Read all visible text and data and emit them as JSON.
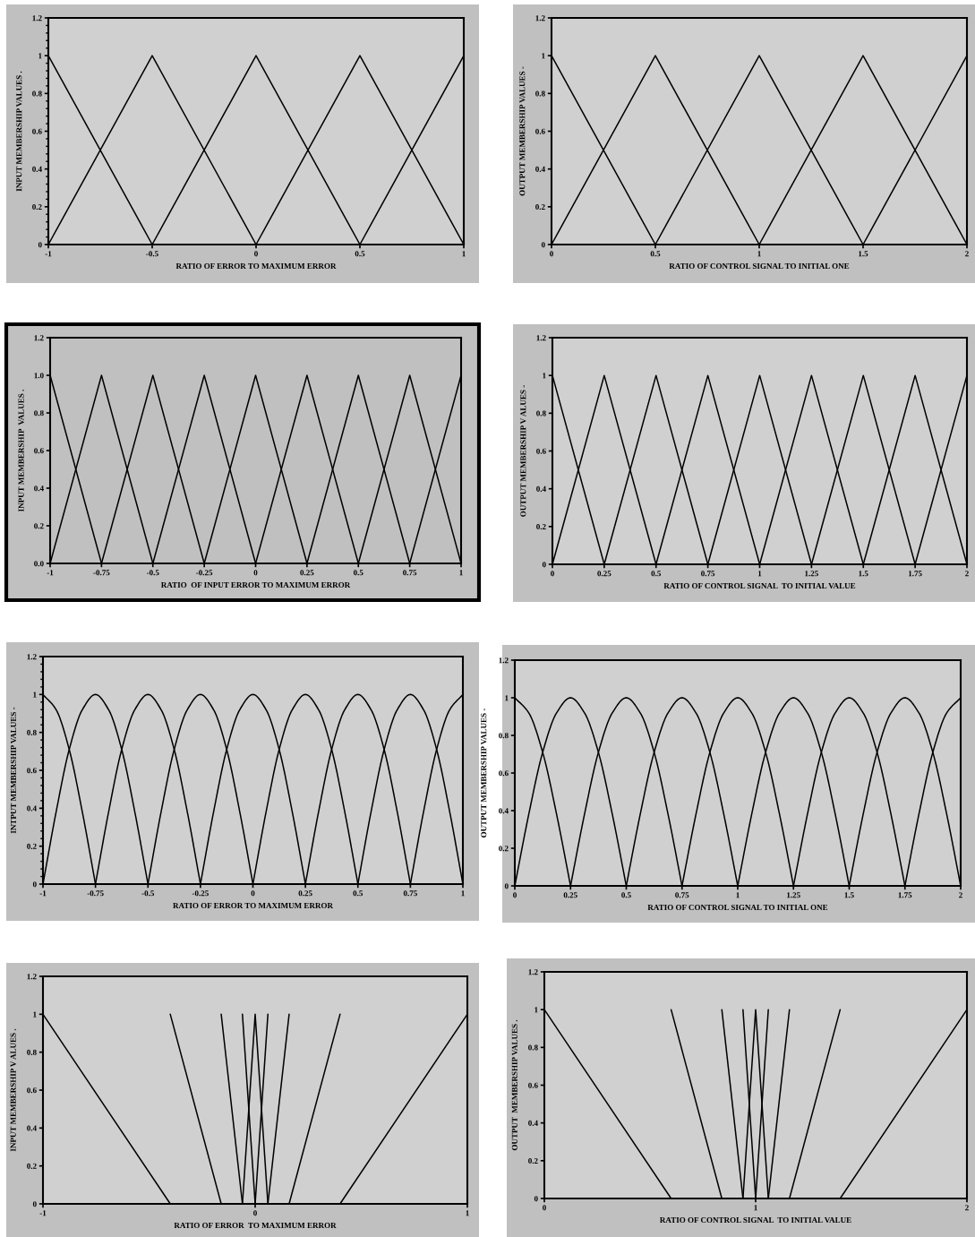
{
  "chart_data": [
    {
      "type": "line",
      "xlabel": "RATIO OF ERROR TO MAXIMUM ERROR",
      "ylabel": "INPUT MEMBERSHIP VALUES .",
      "xlim": [
        -1,
        1
      ],
      "ylim": [
        0,
        1.2
      ],
      "xticks": [
        -1,
        -0.5,
        0,
        0.5,
        1
      ],
      "yticks": [
        0,
        0.2,
        0.4,
        0.6,
        0.8,
        1,
        1.2
      ],
      "line_style": "solid",
      "series": [
        {
          "color": "#000000",
          "x": [
            -1,
            -0.5
          ],
          "values": [
            1,
            0
          ]
        },
        {
          "color": "#000000",
          "x": [
            -1,
            -0.5,
            0
          ],
          "values": [
            0,
            1,
            0
          ]
        },
        {
          "color": "#000000",
          "x": [
            -0.5,
            0,
            0.5
          ],
          "values": [
            0,
            1,
            0
          ]
        },
        {
          "color": "#000000",
          "x": [
            0,
            0.5,
            1
          ],
          "values": [
            0,
            1,
            0
          ]
        },
        {
          "color": "#000000",
          "x": [
            0.5,
            1
          ],
          "values": [
            0,
            1
          ]
        }
      ]
    },
    {
      "type": "line",
      "xlabel": "RATIO OF CONTROL SIGNAL TO INITIAL ONE",
      "ylabel": "OUTPUT MEMBERSHIP VALUES -",
      "xlim": [
        0,
        2
      ],
      "ylim": [
        0,
        1.2
      ],
      "xticks": [
        0,
        0.5,
        1,
        1.5,
        2
      ],
      "yticks": [
        0,
        0.2,
        0.4,
        0.6,
        0.8,
        1,
        1.2
      ],
      "line_style": "solid",
      "series": [
        {
          "color": "#000000",
          "x": [
            0,
            0.5
          ],
          "values": [
            1,
            0
          ]
        },
        {
          "color": "#000000",
          "x": [
            0,
            0.5,
            1
          ],
          "values": [
            0,
            1,
            0
          ]
        },
        {
          "color": "#000000",
          "x": [
            0.5,
            1,
            1.5
          ],
          "values": [
            0,
            1,
            0
          ]
        },
        {
          "color": "#000000",
          "x": [
            1,
            1.5,
            2
          ],
          "values": [
            0,
            1,
            0
          ]
        },
        {
          "color": "#000000",
          "x": [
            1.5,
            2
          ],
          "values": [
            0,
            1
          ]
        }
      ]
    },
    {
      "type": "line",
      "xlabel": "RATIO  OF INPUT ERROR TO MAXIMUM ERROR",
      "ylabel": "INPUT MEMBERSHIP  VALUES .",
      "xlim": [
        -1,
        1
      ],
      "ylim": [
        0,
        1.2
      ],
      "xticks": [
        -1,
        -0.75,
        -0.5,
        -0.25,
        0,
        0.25,
        0.5,
        0.75,
        1
      ],
      "yticks": [
        {
          "value": 0,
          "label": "0.0"
        },
        0.2,
        0.4,
        0.6,
        0.8,
        {
          "value": 1,
          "label": "1.0"
        },
        1.2
      ],
      "line_style": "solid",
      "series": [
        {
          "color": "#000000",
          "x": [
            -1,
            -0.75
          ],
          "values": [
            1,
            0
          ]
        },
        {
          "color": "#000000",
          "x": [
            -1,
            -0.75,
            -0.5
          ],
          "values": [
            0,
            1,
            0
          ]
        },
        {
          "color": "#000000",
          "x": [
            -0.75,
            -0.5,
            -0.25
          ],
          "values": [
            0,
            1,
            0
          ]
        },
        {
          "color": "#000000",
          "x": [
            -0.5,
            -0.25,
            0
          ],
          "values": [
            0,
            1,
            0
          ]
        },
        {
          "color": "#000000",
          "x": [
            -0.25,
            0,
            0.25
          ],
          "values": [
            0,
            1,
            0
          ]
        },
        {
          "color": "#000000",
          "x": [
            0,
            0.25,
            0.5
          ],
          "values": [
            0,
            1,
            0
          ]
        },
        {
          "color": "#000000",
          "x": [
            0.25,
            0.5,
            0.75
          ],
          "values": [
            0,
            1,
            0
          ]
        },
        {
          "color": "#000000",
          "x": [
            0.5,
            0.75,
            1
          ],
          "values": [
            0,
            1,
            0
          ]
        },
        {
          "color": "#000000",
          "x": [
            0.75,
            1
          ],
          "values": [
            0,
            1
          ]
        }
      ]
    },
    {
      "type": "line",
      "xlabel": "RATIO OF CONTROL SIGNAL  TO INITIAL VALUE",
      "ylabel": "OUTPUT MEMBERSHIP V ALUES -",
      "xlim": [
        0,
        2
      ],
      "ylim": [
        0,
        1.2
      ],
      "xticks": [
        0,
        0.25,
        0.5,
        0.75,
        1,
        1.25,
        1.5,
        1.75,
        2
      ],
      "yticks": [
        0,
        0.2,
        0.4,
        0.6,
        0.8,
        1,
        1.2
      ],
      "line_style": "solid",
      "series": [
        {
          "color": "#000000",
          "x": [
            0,
            0.25
          ],
          "values": [
            1,
            0
          ]
        },
        {
          "color": "#000000",
          "x": [
            0,
            0.25,
            0.5
          ],
          "values": [
            0,
            1,
            0
          ]
        },
        {
          "color": "#000000",
          "x": [
            0.25,
            0.5,
            0.75
          ],
          "values": [
            0,
            1,
            0
          ]
        },
        {
          "color": "#000000",
          "x": [
            0.5,
            0.75,
            1
          ],
          "values": [
            0,
            1,
            0
          ]
        },
        {
          "color": "#000000",
          "x": [
            0.75,
            1,
            1.25
          ],
          "values": [
            0,
            1,
            0
          ]
        },
        {
          "color": "#000000",
          "x": [
            1,
            1.25,
            1.5
          ],
          "values": [
            0,
            1,
            0
          ]
        },
        {
          "color": "#000000",
          "x": [
            1.25,
            1.5,
            1.75
          ],
          "values": [
            0,
            1,
            0
          ]
        },
        {
          "color": "#000000",
          "x": [
            1.5,
            1.75,
            2
          ],
          "values": [
            0,
            1,
            0
          ]
        },
        {
          "color": "#000000",
          "x": [
            1.75,
            2
          ],
          "values": [
            0,
            1
          ]
        }
      ]
    },
    {
      "type": "line",
      "xlabel": "RATIO OF ERROR TO MAXIMUM ERROR",
      "ylabel": "INTPUT MEMBERSHIP VALUES -",
      "xlim": [
        -1,
        1
      ],
      "ylim": [
        0,
        1.2
      ],
      "xticks": [
        -1,
        -0.75,
        -0.5,
        -0.25,
        0,
        0.25,
        0.5,
        0.75,
        1
      ],
      "yticks": [
        0,
        0.2,
        0.4,
        0.6,
        0.8,
        1,
        1.2
      ],
      "line_style": "solid",
      "series": [
        {
          "color": "#000000",
          "x": [
            -1,
            -0.9375,
            -0.875,
            -0.8125,
            -0.75
          ],
          "values": [
            1,
            0.92,
            0.71,
            0.38,
            0
          ]
        },
        {
          "color": "#000000",
          "x": [
            -1,
            -0.9375,
            -0.875,
            -0.8125,
            -0.75,
            -0.6875,
            -0.625,
            -0.5625,
            -0.5
          ],
          "values": [
            0,
            0.38,
            0.71,
            0.92,
            1,
            0.92,
            0.71,
            0.38,
            0
          ]
        },
        {
          "color": "#000000",
          "x": [
            -0.75,
            -0.6875,
            -0.625,
            -0.5625,
            -0.5,
            -0.4375,
            -0.375,
            -0.3125,
            -0.25
          ],
          "values": [
            0,
            0.38,
            0.71,
            0.92,
            1,
            0.92,
            0.71,
            0.38,
            0
          ]
        },
        {
          "color": "#000000",
          "x": [
            -0.5,
            -0.4375,
            -0.375,
            -0.3125,
            -0.25,
            -0.1875,
            -0.125,
            -0.0625,
            0
          ],
          "values": [
            0,
            0.38,
            0.71,
            0.92,
            1,
            0.92,
            0.71,
            0.38,
            0
          ]
        },
        {
          "color": "#000000",
          "x": [
            -0.25,
            -0.1875,
            -0.125,
            -0.0625,
            0,
            0.0625,
            0.125,
            0.1875,
            0.25
          ],
          "values": [
            0,
            0.38,
            0.71,
            0.92,
            1,
            0.92,
            0.71,
            0.38,
            0
          ]
        },
        {
          "color": "#000000",
          "x": [
            0,
            0.0625,
            0.125,
            0.1875,
            0.25,
            0.3125,
            0.375,
            0.4375,
            0.5
          ],
          "values": [
            0,
            0.38,
            0.71,
            0.92,
            1,
            0.92,
            0.71,
            0.38,
            0
          ]
        },
        {
          "color": "#000000",
          "x": [
            0.25,
            0.3125,
            0.375,
            0.4375,
            0.5,
            0.5625,
            0.625,
            0.6875,
            0.75
          ],
          "values": [
            0,
            0.38,
            0.71,
            0.92,
            1,
            0.92,
            0.71,
            0.38,
            0
          ]
        },
        {
          "color": "#000000",
          "x": [
            0.5,
            0.5625,
            0.625,
            0.6875,
            0.75,
            0.8125,
            0.875,
            0.9375,
            1
          ],
          "values": [
            0,
            0.38,
            0.71,
            0.92,
            1,
            0.92,
            0.71,
            0.38,
            0
          ]
        },
        {
          "color": "#000000",
          "x": [
            0.75,
            0.8125,
            0.875,
            0.9375,
            1
          ],
          "values": [
            0,
            0.38,
            0.71,
            0.92,
            1
          ]
        }
      ]
    },
    {
      "type": "line",
      "xlabel": "RATIO OF CONTROL SIGNAL TO INITIAL ONE",
      "ylabel": "OUTPUT MEMBERSHIP VALUES -",
      "xlim": [
        0,
        2
      ],
      "ylim": [
        0,
        1.2
      ],
      "xticks": [
        0,
        0.25,
        0.5,
        0.75,
        1,
        1.25,
        1.5,
        1.75,
        2
      ],
      "yticks": [
        0,
        0.2,
        0.4,
        0.6,
        0.8,
        1,
        1.2
      ],
      "line_style": "solid",
      "series": [
        {
          "color": "#000000",
          "x": [
            0,
            0.0625,
            0.125,
            0.1875,
            0.25
          ],
          "values": [
            1,
            0.92,
            0.71,
            0.38,
            0
          ]
        },
        {
          "color": "#000000",
          "x": [
            0,
            0.0625,
            0.125,
            0.1875,
            0.25,
            0.3125,
            0.375,
            0.4375,
            0.5
          ],
          "values": [
            0,
            0.38,
            0.71,
            0.92,
            1,
            0.92,
            0.71,
            0.38,
            0
          ]
        },
        {
          "color": "#000000",
          "x": [
            0.25,
            0.3125,
            0.375,
            0.4375,
            0.5,
            0.5625,
            0.625,
            0.6875,
            0.75
          ],
          "values": [
            0,
            0.38,
            0.71,
            0.92,
            1,
            0.92,
            0.71,
            0.38,
            0
          ]
        },
        {
          "color": "#000000",
          "x": [
            0.5,
            0.5625,
            0.625,
            0.6875,
            0.75,
            0.8125,
            0.875,
            0.9375,
            1
          ],
          "values": [
            0,
            0.38,
            0.71,
            0.92,
            1,
            0.92,
            0.71,
            0.38,
            0
          ]
        },
        {
          "color": "#000000",
          "x": [
            0.75,
            0.8125,
            0.875,
            0.9375,
            1,
            1.0625,
            1.125,
            1.1875,
            1.25
          ],
          "values": [
            0,
            0.38,
            0.71,
            0.92,
            1,
            0.92,
            0.71,
            0.38,
            0
          ]
        },
        {
          "color": "#000000",
          "x": [
            1,
            1.0625,
            1.125,
            1.1875,
            1.25,
            1.3125,
            1.375,
            1.4375,
            1.5
          ],
          "values": [
            0,
            0.38,
            0.71,
            0.92,
            1,
            0.92,
            0.71,
            0.38,
            0
          ]
        },
        {
          "color": "#000000",
          "x": [
            1.25,
            1.3125,
            1.375,
            1.4375,
            1.5,
            1.5625,
            1.625,
            1.6875,
            1.75
          ],
          "values": [
            0,
            0.38,
            0.71,
            0.92,
            1,
            0.92,
            0.71,
            0.38,
            0
          ]
        },
        {
          "color": "#000000",
          "x": [
            1.5,
            1.5625,
            1.625,
            1.6875,
            1.75,
            1.8125,
            1.875,
            1.9375,
            2
          ],
          "values": [
            0,
            0.38,
            0.71,
            0.92,
            1,
            0.92,
            0.71,
            0.38,
            0
          ]
        },
        {
          "color": "#000000",
          "x": [
            1.75,
            1.8125,
            1.875,
            1.9375,
            2
          ],
          "values": [
            0,
            0.38,
            0.71,
            0.92,
            1
          ]
        }
      ]
    },
    {
      "type": "line",
      "xlabel": "RATIO OF ERROR  TO MAXIMUM ERROR",
      "ylabel": "INPUT MEMBERSHIP V ALUES .",
      "xlim": [
        -1,
        1
      ],
      "ylim": [
        0,
        1.2
      ],
      "xticks": [
        -1,
        0,
        1
      ],
      "yticks": [
        0,
        0.2,
        0.4,
        0.6,
        0.8,
        1,
        1.2
      ],
      "line_style": "solid",
      "series": [
        {
          "color": "#000000",
          "x": [
            -1,
            -0.4
          ],
          "values": [
            1,
            0
          ]
        },
        {
          "color": "#000000",
          "x": [
            -0.4,
            -0.16
          ],
          "values": [
            1,
            0
          ]
        },
        {
          "color": "#000000",
          "x": [
            -0.16,
            -0.06
          ],
          "values": [
            1,
            0
          ]
        },
        {
          "color": "#000000",
          "x": [
            -0.06,
            0
          ],
          "values": [
            1,
            0
          ]
        },
        {
          "color": "#000000",
          "x": [
            -0.06,
            0,
            0.06
          ],
          "values": [
            0,
            1,
            0
          ]
        },
        {
          "color": "#000000",
          "x": [
            0,
            0.06
          ],
          "values": [
            0,
            1
          ]
        },
        {
          "color": "#000000",
          "x": [
            0.06,
            0.16
          ],
          "values": [
            0,
            1
          ]
        },
        {
          "color": "#000000",
          "x": [
            0.16,
            0.4
          ],
          "values": [
            0,
            1
          ]
        },
        {
          "color": "#000000",
          "x": [
            0.4,
            1
          ],
          "values": [
            0,
            1
          ]
        }
      ]
    },
    {
      "type": "line",
      "xlabel": "RATIO OF CONTROL SIGNAL  TO INITIAL VALUE",
      "ylabel": "OUTPUT  MEMBERSHIP VALUES .",
      "xlim": [
        0,
        2
      ],
      "ylim": [
        0,
        1.2
      ],
      "xticks": [
        0,
        1,
        2
      ],
      "yticks": [
        0,
        0.2,
        0.4,
        0.6,
        0.8,
        1,
        1.2
      ],
      "line_style": "solid",
      "series": [
        {
          "color": "#000000",
          "x": [
            0,
            0.6
          ],
          "values": [
            1,
            0
          ]
        },
        {
          "color": "#000000",
          "x": [
            0.6,
            0.84
          ],
          "values": [
            1,
            0
          ]
        },
        {
          "color": "#000000",
          "x": [
            0.84,
            0.94
          ],
          "values": [
            1,
            0
          ]
        },
        {
          "color": "#000000",
          "x": [
            0.94,
            1
          ],
          "values": [
            1,
            0
          ]
        },
        {
          "color": "#000000",
          "x": [
            0.94,
            1,
            1.06
          ],
          "values": [
            0,
            1,
            0
          ]
        },
        {
          "color": "#000000",
          "x": [
            1,
            1.06
          ],
          "values": [
            0,
            1
          ]
        },
        {
          "color": "#000000",
          "x": [
            1.06,
            1.16
          ],
          "values": [
            0,
            1
          ]
        },
        {
          "color": "#000000",
          "x": [
            1.16,
            1.4
          ],
          "values": [
            0,
            1
          ]
        },
        {
          "color": "#000000",
          "x": [
            1.4,
            2
          ],
          "values": [
            0,
            1
          ]
        }
      ]
    }
  ]
}
